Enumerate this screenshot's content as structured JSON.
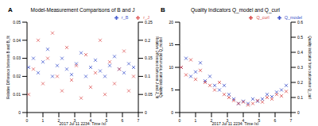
{
  "chart_data": [
    {
      "type": "scatter",
      "title": "Model-Measurement Comparisons of B and J",
      "annotations": [
        "A"
      ],
      "x_label": "2017 Jul 11 2234: Time (s)",
      "y_label": "Relative Difference between B and B_fit",
      "y2_label": "Relative Difference between J and J_fit",
      "x": [
        0.1,
        0.4,
        0.7,
        1.0,
        1.3,
        1.6,
        1.9,
        2.2,
        2.5,
        2.8,
        3.1,
        3.4,
        3.7,
        4.0,
        4.3,
        4.6,
        4.9,
        5.2,
        5.5,
        5.8,
        6.1,
        6.4,
        6.7
      ],
      "xlim": [
        0,
        7
      ],
      "xticks": [
        0,
        1,
        2,
        3,
        4,
        5,
        6,
        7
      ],
      "ylim": [
        0,
        0.05
      ],
      "yticks": [
        0,
        0.01,
        0.02,
        0.03,
        0.04,
        0.05
      ],
      "y2lim": [
        0,
        0.25
      ],
      "y2ticks": [
        0,
        0.05,
        0.1,
        0.15,
        0.2,
        0.25
      ],
      "legend": "top-right",
      "series": [
        {
          "name": "r_B",
          "color": "#4a5fd0",
          "marker": "x",
          "values": [
            0.025,
            0.03,
            0.022,
            0.028,
            0.035,
            0.02,
            0.026,
            0.03,
            0.024,
            0.021,
            0.027,
            0.033,
            0.02,
            0.025,
            0.029,
            0.023,
            0.02,
            0.026,
            0.031,
            0.024,
            0.022,
            0.027,
            0.025
          ]
        },
        {
          "name": "r_J",
          "color": "#e06060",
          "marker": "x",
          "axis": "y2",
          "values": [
            0.05,
            0.12,
            0.2,
            0.08,
            0.15,
            0.22,
            0.1,
            0.06,
            0.18,
            0.09,
            0.13,
            0.04,
            0.16,
            0.07,
            0.11,
            0.2,
            0.05,
            0.14,
            0.08,
            0.12,
            0.17,
            0.06,
            0.1
          ]
        }
      ]
    },
    {
      "type": "scatter",
      "title": "Quality Indicators Q_model and Q_curl",
      "annotations": [
        "B"
      ],
      "x_label": "2017 Jul 11 2234: Time (s)",
      "y_label": "Quality indicator from model Q_model",
      "y2_label": "Quality indicator from curlometer Q_curl",
      "x": [
        0.1,
        0.4,
        0.7,
        1.0,
        1.3,
        1.6,
        1.9,
        2.2,
        2.5,
        2.8,
        3.1,
        3.4,
        3.7,
        4.0,
        4.3,
        4.6,
        4.9,
        5.2,
        5.5,
        5.8,
        6.1,
        6.4,
        6.7
      ],
      "xlim": [
        0,
        7
      ],
      "xticks": [
        0,
        1,
        2,
        3,
        4,
        5,
        6,
        7
      ],
      "ylim": [
        0,
        20
      ],
      "yticks": [
        0,
        5,
        10,
        15,
        20
      ],
      "y2lim": [
        0,
        0.6
      ],
      "y2ticks": [
        0,
        0.1,
        0.2,
        0.3,
        0.4,
        0.5,
        0.6
      ],
      "legend": "top-right",
      "series": [
        {
          "name": "Q_model",
          "color": "#3b4fc8",
          "marker": "x",
          "values": [
            10,
            12,
            8,
            9,
            11,
            7,
            8,
            6,
            5,
            6,
            4,
            3,
            2,
            2.5,
            2,
            3,
            2.5,
            3,
            4,
            3.5,
            4.5,
            5,
            6
          ]
        },
        {
          "name": "Q_curl",
          "color": "#d94a4a",
          "marker": "x",
          "axis": "y2",
          "values": [
            0.3,
            0.25,
            0.35,
            0.22,
            0.28,
            0.2,
            0.18,
            0.15,
            0.2,
            0.12,
            0.1,
            0.08,
            0.06,
            0.07,
            0.05,
            0.06,
            0.08,
            0.07,
            0.1,
            0.09,
            0.12,
            0.11,
            0.14
          ]
        }
      ]
    }
  ]
}
